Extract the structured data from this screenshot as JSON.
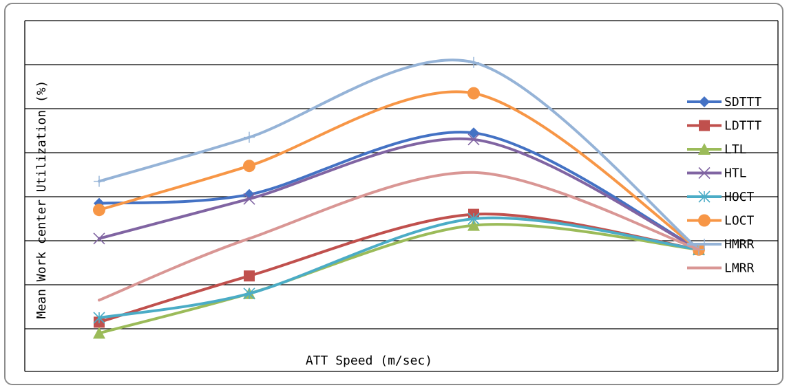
{
  "chart_data": {
    "type": "line",
    "title": "",
    "xlabel": "ATT Speed (m/sec)",
    "ylabel": "Mean Work center Utilization (%)",
    "x_count": 4,
    "ylim": [
      0,
      7
    ],
    "y_gridlines": [
      0,
      1,
      2,
      3,
      4,
      5,
      6,
      7
    ],
    "grid": true,
    "legend_position": "right",
    "smooth": true,
    "series": [
      {
        "name": "SDTTT",
        "color": "#4472c4",
        "marker": "diamond",
        "values": [
          2.85,
          3.05,
          4.45,
          1.8
        ]
      },
      {
        "name": "LDTTT",
        "color": "#c0504d",
        "marker": "square",
        "values": [
          0.15,
          1.2,
          2.6,
          1.8
        ]
      },
      {
        "name": "LTL",
        "color": "#9bbb59",
        "marker": "triangle",
        "values": [
          -0.1,
          0.8,
          2.35,
          1.8
        ]
      },
      {
        "name": "HTL",
        "color": "#8064a2",
        "marker": "x",
        "values": [
          2.05,
          2.95,
          4.3,
          1.8
        ]
      },
      {
        "name": "HOCT",
        "color": "#4bacc6",
        "marker": "asterisk",
        "values": [
          0.25,
          0.8,
          2.5,
          1.8
        ]
      },
      {
        "name": "LOCT",
        "color": "#f79646",
        "marker": "circle",
        "values": [
          2.7,
          3.7,
          5.35,
          1.8
        ]
      },
      {
        "name": "HMRR",
        "color": "#95b3d7",
        "marker": "plus",
        "values": [
          3.35,
          4.35,
          6.05,
          1.8
        ]
      },
      {
        "name": "LMRR",
        "color": "#d99694",
        "marker": "none",
        "values": [
          0.65,
          2.05,
          3.55,
          1.8
        ]
      }
    ]
  }
}
